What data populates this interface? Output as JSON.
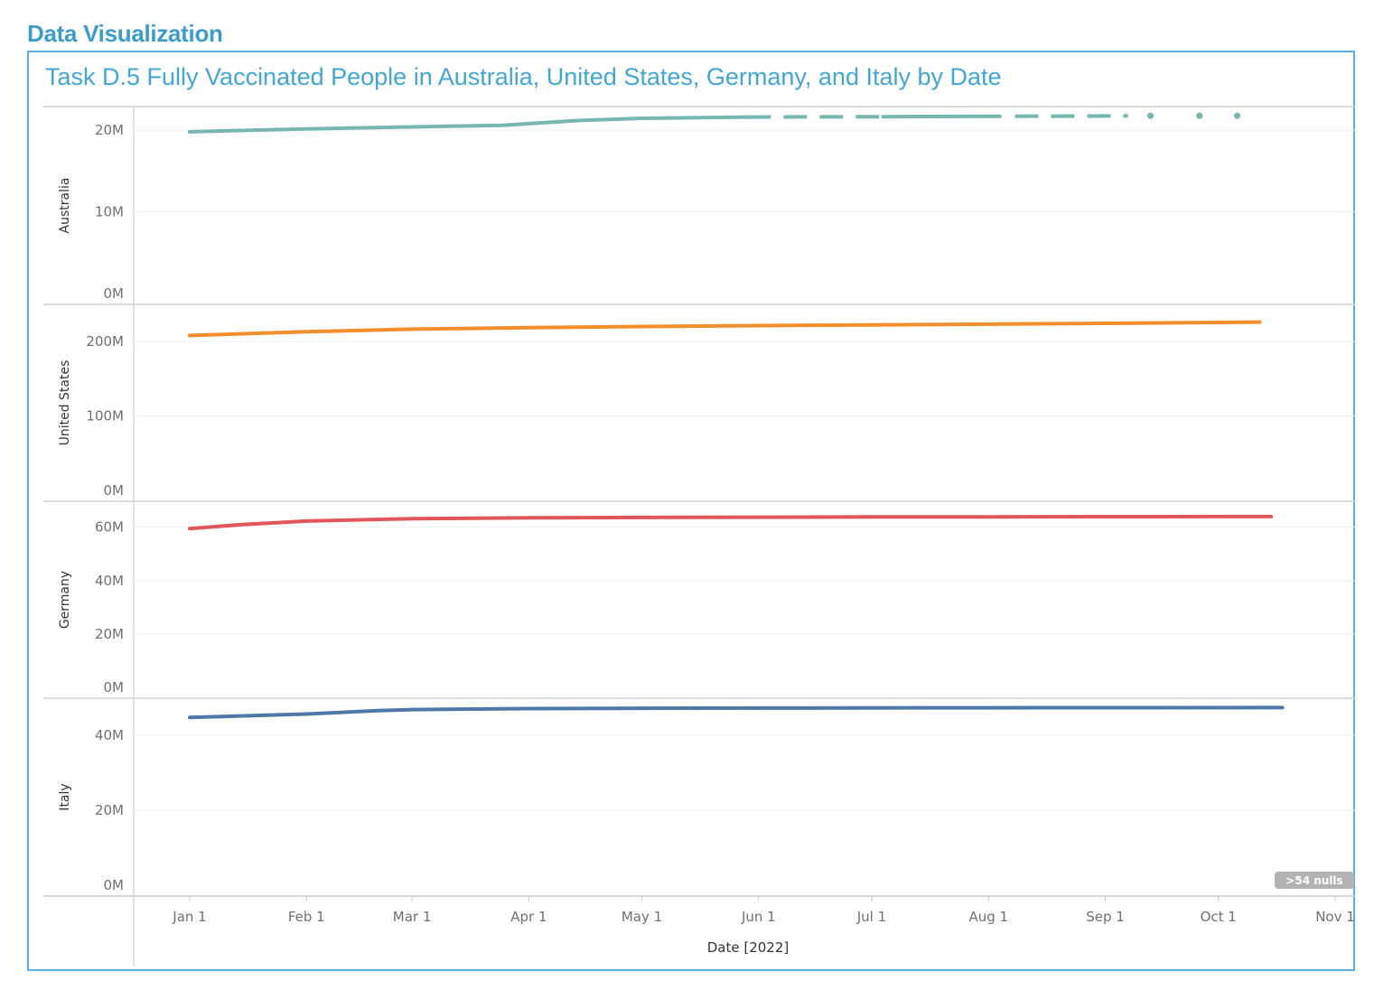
{
  "page": {
    "heading": "Data Visualization"
  },
  "chart_data": {
    "type": "line",
    "title": "Task D.5 Fully Vaccinated People in Australia, United States, Germany, and Italy by Date",
    "xlabel": "Date [2022]",
    "x_ticks": [
      "Jan 1",
      "Feb 1",
      "Mar 1",
      "Apr 1",
      "May 1",
      "Jun 1",
      "Jul 1",
      "Aug 1",
      "Sep 1",
      "Oct 1",
      "Nov 1"
    ],
    "nulls_badge": ">54 nulls",
    "grid": true,
    "colors": {
      "Australia": "#76b7b2",
      "United States": "#f28e2b",
      "Germany": "#e15759",
      "Italy": "#4e79a7"
    },
    "panels": [
      {
        "name": "Australia",
        "ylim": [
          0,
          22000000
        ],
        "yticks": [
          0,
          10000000,
          20000000
        ],
        "ytick_labels": [
          "0M",
          "10M",
          "20M"
        ],
        "segments": [
          {
            "style": "solid",
            "points": [
              [
                "2022-01-01",
                19800000
              ],
              [
                "2022-02-01",
                20150000
              ],
              [
                "2022-03-01",
                20400000
              ],
              [
                "2022-03-25",
                20600000
              ],
              [
                "2022-04-15",
                21200000
              ],
              [
                "2022-05-01",
                21450000
              ],
              [
                "2022-05-29",
                21600000
              ]
            ]
          },
          {
            "style": "dashed",
            "points": [
              [
                "2022-05-29",
                21600000
              ],
              [
                "2022-07-04",
                21650000
              ]
            ]
          },
          {
            "style": "solid",
            "points": [
              [
                "2022-07-04",
                21650000
              ],
              [
                "2022-08-04",
                21700000
              ]
            ]
          },
          {
            "style": "dashed",
            "points": [
              [
                "2022-08-08",
                21700000
              ],
              [
                "2022-09-07",
                21750000
              ]
            ]
          },
          {
            "style": "dots",
            "points": [
              [
                "2022-09-13",
                21750000
              ],
              [
                "2022-09-26",
                21750000
              ],
              [
                "2022-10-06",
                21750000
              ]
            ]
          }
        ]
      },
      {
        "name": "United States",
        "ylim": [
          0,
          240000000
        ],
        "yticks": [
          0,
          100000000,
          200000000
        ],
        "ytick_labels": [
          "0M",
          "100M",
          "200M"
        ],
        "segments": [
          {
            "style": "solid",
            "points": [
              [
                "2022-01-01",
                208000000
              ],
              [
                "2022-02-01",
                213000000
              ],
              [
                "2022-03-01",
                216500000
              ],
              [
                "2022-04-01",
                218500000
              ],
              [
                "2022-05-01",
                220000000
              ],
              [
                "2022-06-01",
                221200000
              ],
              [
                "2022-07-01",
                222200000
              ],
              [
                "2022-08-01",
                223200000
              ],
              [
                "2022-09-01",
                224300000
              ],
              [
                "2022-10-01",
                225500000
              ],
              [
                "2022-10-12",
                226000000
              ]
            ]
          }
        ]
      },
      {
        "name": "Germany",
        "ylim": [
          0,
          67000000
        ],
        "yticks": [
          0,
          20000000,
          40000000,
          60000000
        ],
        "ytick_labels": [
          "0M",
          "20M",
          "40M",
          "60M"
        ],
        "segments": [
          {
            "style": "solid",
            "points": [
              [
                "2022-01-01",
                59500000
              ],
              [
                "2022-01-15",
                61000000
              ],
              [
                "2022-02-01",
                62300000
              ],
              [
                "2022-03-01",
                63200000
              ],
              [
                "2022-04-01",
                63500000
              ],
              [
                "2022-05-01",
                63650000
              ],
              [
                "2022-06-01",
                63750000
              ],
              [
                "2022-07-01",
                63850000
              ],
              [
                "2022-08-01",
                63900000
              ],
              [
                "2022-09-01",
                63950000
              ],
              [
                "2022-10-01",
                64000000
              ],
              [
                "2022-10-15",
                64000000
              ]
            ]
          }
        ]
      },
      {
        "name": "Italy",
        "ylim": [
          0,
          48000000
        ],
        "yticks": [
          0,
          20000000,
          40000000
        ],
        "ytick_labels": [
          "0M",
          "20M",
          "40M"
        ],
        "segments": [
          {
            "style": "solid",
            "points": [
              [
                "2022-01-01",
                44800000
              ],
              [
                "2022-02-01",
                45700000
              ],
              [
                "2022-02-20",
                46600000
              ],
              [
                "2022-03-01",
                46900000
              ],
              [
                "2022-04-01",
                47150000
              ],
              [
                "2022-05-01",
                47250000
              ],
              [
                "2022-06-01",
                47300000
              ],
              [
                "2022-07-01",
                47350000
              ],
              [
                "2022-08-01",
                47380000
              ],
              [
                "2022-09-01",
                47400000
              ],
              [
                "2022-10-18",
                47420000
              ]
            ]
          }
        ]
      }
    ]
  }
}
